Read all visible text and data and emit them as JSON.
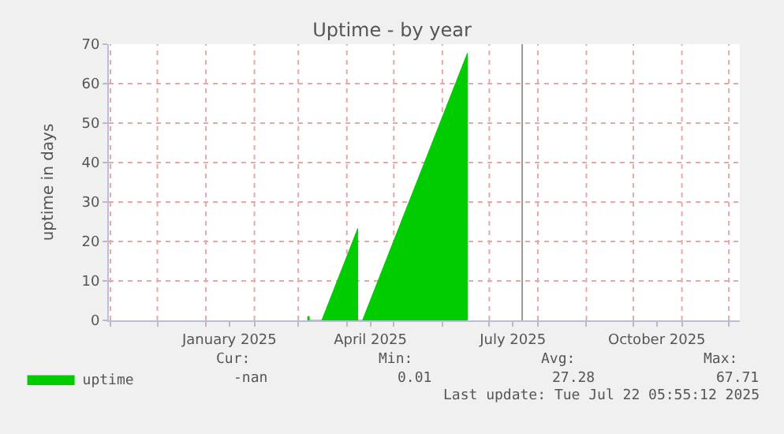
{
  "chart_data": {
    "type": "area",
    "title": "Uptime - by year",
    "ylabel": "uptime in days",
    "series": [
      {
        "name": "uptime",
        "color": "#00cc00",
        "x": [
          "2025-03-07",
          "2025-03-07",
          "2025-03-08",
          "2025-03-08",
          "2025-03-16",
          "2025-04-08",
          "2025-04-08",
          "2025-04-11",
          "2025-06-17",
          "2025-06-17"
        ],
        "values": [
          0,
          1,
          1,
          0,
          0,
          23.3,
          0,
          0,
          67.71,
          0
        ]
      }
    ],
    "xlim": [
      "2024-10-31",
      "2025-12-08"
    ],
    "xticks": [
      {
        "value": "2024-11-01",
        "label": null
      },
      {
        "value": "2024-12-01",
        "label": null
      },
      {
        "value": "2025-01-01",
        "label": null
      },
      {
        "value": "2025-01-16",
        "label": "January 2025"
      },
      {
        "value": "2025-02-01",
        "label": null
      },
      {
        "value": "2025-03-01",
        "label": null
      },
      {
        "value": "2025-04-01",
        "label": null
      },
      {
        "value": "2025-04-16",
        "label": "April 2025"
      },
      {
        "value": "2025-05-01",
        "label": null
      },
      {
        "value": "2025-06-01",
        "label": null
      },
      {
        "value": "2025-07-01",
        "label": null
      },
      {
        "value": "2025-07-16",
        "label": "July 2025"
      },
      {
        "value": "2025-08-01",
        "label": null
      },
      {
        "value": "2025-09-01",
        "label": null
      },
      {
        "value": "2025-10-01",
        "label": null
      },
      {
        "value": "2025-10-16",
        "label": "October 2025"
      },
      {
        "value": "2025-11-01",
        "label": null
      },
      {
        "value": "2025-12-01",
        "label": null
      }
    ],
    "ylim": [
      0,
      70
    ],
    "yticks": [
      0,
      10,
      20,
      30,
      40,
      50,
      60,
      70
    ],
    "grid": true,
    "legend": "bottom left",
    "ref_lines": [
      {
        "axis": "x",
        "value": "2025-07-22",
        "color": "#999999"
      }
    ],
    "annotations": [
      "Cur:",
      "Min:",
      "Avg:",
      "Max:",
      "-nan",
      "0.01",
      "27.28",
      "67.71",
      "Last update: Tue Jul 22 05:55:12 2025"
    ]
  }
}
